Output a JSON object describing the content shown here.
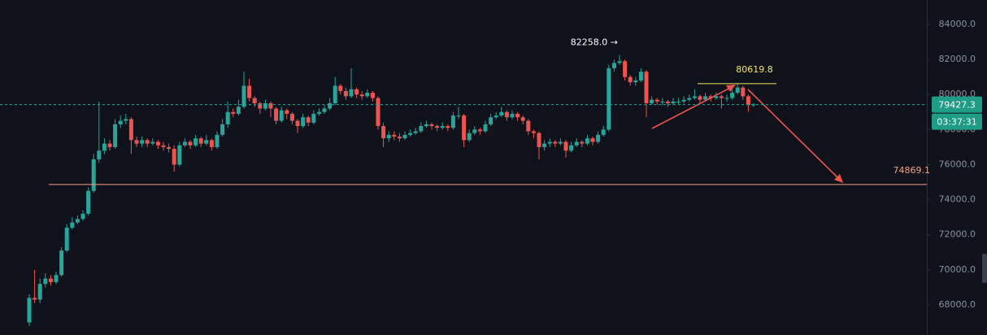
{
  "chart_data": {
    "type": "candlestick",
    "up_color": "#26a69a",
    "down_color": "#ef5350",
    "open": [
      67000,
      68400,
      68300,
      69200,
      69500,
      69300,
      69700,
      71100,
      72400,
      72700,
      72900,
      73200,
      74500,
      76300,
      76800,
      77200,
      77000,
      78300,
      78500,
      78600,
      77400,
      77200,
      77400,
      77200,
      77300,
      77100,
      77000,
      76900,
      76000,
      77100,
      77300,
      77100,
      77500,
      77200,
      77400,
      77000,
      77700,
      78300,
      79000,
      78900,
      79300,
      80500,
      79800,
      79500,
      79200,
      79500,
      79200,
      78500,
      79100,
      78900,
      78500,
      78200,
      78700,
      78400,
      78900,
      79000,
      79200,
      79500,
      80500,
      80200,
      79900,
      80300,
      80000,
      79900,
      80100,
      79800,
      78200,
      77500,
      77700,
      77600,
      77500,
      77700,
      77800,
      77900,
      78200,
      78300,
      78200,
      78100,
      78200,
      78100,
      78800,
      78800,
      77400,
      77800,
      78000,
      77900,
      78300,
      78700,
      78800,
      79000,
      78700,
      78900,
      78700,
      78500,
      77900,
      77800,
      77000,
      77200,
      77300,
      77200,
      77300,
      76800,
      77100,
      77300,
      77200,
      77500,
      77300,
      77700,
      78000,
      81500,
      81800,
      81900,
      81000,
      80700,
      80800,
      81300,
      79500,
      79700,
      79600,
      79600,
      79500,
      79600,
      79600,
      79700,
      79800,
      79900,
      79700,
      79900,
      79800,
      79900,
      79800,
      79800,
      80100,
      80400,
      79900,
      79400
    ],
    "high": [
      68600,
      70000,
      69500,
      69800,
      69700,
      69900,
      71300,
      72600,
      73000,
      73100,
      73400,
      74700,
      76600,
      79600,
      77500,
      77400,
      78600,
      78800,
      78900,
      78700,
      77600,
      77600,
      77500,
      77500,
      77400,
      77300,
      77200,
      77100,
      77300,
      77500,
      77400,
      77700,
      77600,
      77700,
      77500,
      77900,
      78600,
      79600,
      79200,
      79700,
      81300,
      80900,
      79900,
      79600,
      79700,
      79600,
      79300,
      79300,
      79200,
      79000,
      78600,
      78900,
      78800,
      79100,
      79200,
      79400,
      79800,
      81000,
      80600,
      80400,
      81500,
      80400,
      80200,
      80300,
      80200,
      79900,
      78400,
      77900,
      77900,
      77800,
      77900,
      78000,
      78100,
      78400,
      78500,
      78400,
      78300,
      78400,
      78300,
      79000,
      79300,
      78900,
      78000,
      78200,
      78100,
      78500,
      78900,
      79000,
      79300,
      79100,
      79100,
      79000,
      78800,
      78600,
      78000,
      77900,
      77400,
      77500,
      77400,
      77500,
      77400,
      77300,
      77500,
      77400,
      77700,
      77600,
      77900,
      78200,
      81700,
      82000,
      82258,
      82000,
      81100,
      81000,
      81500,
      81400,
      79900,
      79800,
      79800,
      79700,
      79800,
      79800,
      79900,
      80000,
      80300,
      80000,
      80100,
      80000,
      80100,
      80000,
      80000,
      80300,
      80600,
      80500,
      80000,
      79500
    ],
    "low": [
      66800,
      68100,
      68100,
      69000,
      69100,
      69200,
      69600,
      71000,
      72300,
      72600,
      72800,
      73100,
      74400,
      76100,
      76600,
      76800,
      76900,
      78100,
      78300,
      76600,
      77000,
      77000,
      77000,
      77100,
      76900,
      76800,
      76700,
      75600,
      75900,
      77000,
      76900,
      77000,
      77000,
      77100,
      76800,
      76900,
      77600,
      78100,
      78700,
      78800,
      79200,
      79600,
      79300,
      78900,
      79100,
      78700,
      78300,
      78400,
      78600,
      78300,
      77800,
      78100,
      78200,
      78300,
      78800,
      78900,
      79100,
      79400,
      80000,
      79700,
      79800,
      79800,
      79700,
      79800,
      79600,
      78000,
      77000,
      77300,
      77400,
      77300,
      77400,
      77600,
      77700,
      77800,
      78100,
      78000,
      77900,
      78000,
      77900,
      78000,
      78600,
      77000,
      77300,
      77700,
      77700,
      77800,
      78200,
      78600,
      78700,
      78500,
      78600,
      78500,
      78300,
      77700,
      77500,
      76300,
      76800,
      77000,
      77000,
      77100,
      76400,
      76700,
      77000,
      77000,
      77100,
      77100,
      77200,
      77600,
      77900,
      81300,
      81700,
      80800,
      80500,
      80500,
      80700,
      78700,
      79400,
      79400,
      79400,
      79300,
      79400,
      79400,
      79500,
      79600,
      79700,
      79500,
      79600,
      79600,
      79700,
      79200,
      79600,
      79700,
      80000,
      79700,
      79000,
      79300
    ],
    "close": [
      68400,
      68300,
      69200,
      69500,
      69300,
      69700,
      71100,
      72400,
      72700,
      72900,
      73200,
      74500,
      76300,
      76800,
      77200,
      77000,
      78300,
      78500,
      78600,
      77400,
      77200,
      77400,
      77200,
      77300,
      77100,
      77000,
      76900,
      76000,
      77100,
      77300,
      77100,
      77500,
      77200,
      77400,
      77000,
      77700,
      78300,
      79000,
      78900,
      79300,
      80500,
      79800,
      79500,
      79200,
      79500,
      79200,
      78500,
      79100,
      78900,
      78500,
      78200,
      78700,
      78400,
      78900,
      79000,
      79200,
      79500,
      80500,
      80200,
      79900,
      80300,
      80000,
      79900,
      80100,
      79800,
      78200,
      77500,
      77700,
      77600,
      77500,
      77700,
      77800,
      77900,
      78200,
      78300,
      78200,
      78100,
      78200,
      78100,
      78800,
      78800,
      77400,
      77800,
      78000,
      77900,
      78300,
      78700,
      78800,
      79000,
      78700,
      78900,
      78700,
      78500,
      77900,
      77800,
      77000,
      77200,
      77300,
      77200,
      77300,
      76800,
      77100,
      77300,
      77200,
      77500,
      77300,
      77700,
      78000,
      81500,
      81800,
      81900,
      81000,
      80700,
      80800,
      81300,
      79500,
      79700,
      79600,
      79600,
      79500,
      79600,
      79600,
      79700,
      79800,
      79900,
      79700,
      79900,
      79800,
      79900,
      79800,
      79800,
      80100,
      80400,
      79900,
      79400,
      79427.3
    ],
    "ylim": [
      66282,
      85391
    ],
    "yticks": [
      {
        "value": 68000,
        "label": "68000.0"
      },
      {
        "value": 70000,
        "label": "70000.0"
      },
      {
        "value": 72000,
        "label": "72000.0"
      },
      {
        "value": 74000,
        "label": "74000.0"
      },
      {
        "value": 76000,
        "label": "76000.0"
      },
      {
        "value": 78000,
        "label": "78000.0"
      },
      {
        "value": 80000,
        "label": "80000.0"
      },
      {
        "value": 82000,
        "label": "82000.0"
      },
      {
        "value": 84000,
        "label": "84000.0"
      }
    ],
    "last_price": 79427.3,
    "countdown": "03:37:31",
    "high_marker": {
      "value": 82258,
      "label": "82258.0 →"
    },
    "levels": [
      {
        "value": 74869.1,
        "color": "#f4a183"
      },
      {
        "value": 80619.8,
        "color": "#f5e663"
      }
    ]
  }
}
